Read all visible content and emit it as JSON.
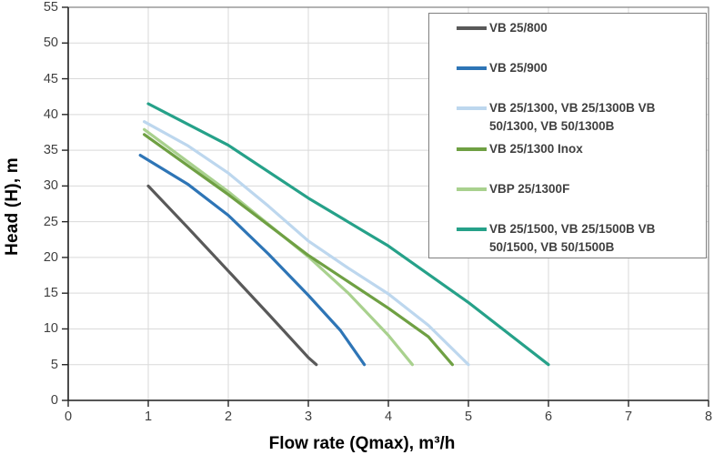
{
  "chart_data": {
    "type": "line",
    "title": "",
    "xlabel": "Flow rate (Qmax), m³/h",
    "ylabel": "Head (H), m",
    "xlim": [
      0,
      8
    ],
    "ylim": [
      0,
      55
    ],
    "x_ticks": [
      0,
      1,
      2,
      3,
      4,
      5,
      6,
      7,
      8
    ],
    "y_ticks": [
      0,
      5,
      10,
      15,
      20,
      25,
      30,
      35,
      40,
      45,
      50,
      55
    ],
    "grid": true,
    "legend_position": "top-right-overlay",
    "series": [
      {
        "name": "VB 25/800",
        "color": "#595959",
        "points": [
          [
            1.0,
            30.0
          ],
          [
            1.5,
            24.1
          ],
          [
            2.0,
            18.1
          ],
          [
            2.5,
            12.1
          ],
          [
            3.0,
            6.0
          ],
          [
            3.1,
            5.0
          ]
        ]
      },
      {
        "name": "VB 25/900",
        "color": "#2E75B6",
        "points": [
          [
            0.9,
            34.3
          ],
          [
            1.5,
            30.2
          ],
          [
            2.0,
            25.9
          ],
          [
            2.5,
            20.5
          ],
          [
            3.0,
            14.7
          ],
          [
            3.4,
            9.8
          ],
          [
            3.7,
            5.0
          ]
        ]
      },
      {
        "name": "VB 25/1300, VB 25/1300B  VB 50/1300, VB 50/1300B",
        "color": "#BDD7EE",
        "points": [
          [
            0.95,
            39.0
          ],
          [
            1.5,
            35.6
          ],
          [
            2.0,
            31.8
          ],
          [
            2.5,
            27.2
          ],
          [
            3.0,
            22.3
          ],
          [
            3.5,
            18.5
          ],
          [
            4.0,
            14.9
          ],
          [
            4.5,
            10.5
          ],
          [
            5.0,
            5.0
          ]
        ]
      },
      {
        "name": "VBP 25/1300F",
        "color": "#A9D18E",
        "points": [
          [
            0.95,
            37.9
          ],
          [
            2.0,
            29.2
          ],
          [
            3.0,
            20.1
          ],
          [
            3.5,
            15.0
          ],
          [
            4.0,
            9.1
          ],
          [
            4.3,
            5.0
          ]
        ]
      },
      {
        "name": "VB 25/1300 Inox",
        "color": "#6FA043",
        "points": [
          [
            0.95,
            37.2
          ],
          [
            2.0,
            28.8
          ],
          [
            3.0,
            20.3
          ],
          [
            4.0,
            12.9
          ],
          [
            4.5,
            8.9
          ],
          [
            4.8,
            5.0
          ]
        ]
      },
      {
        "name": "VB 25/1500, VB 25/1500B VB 50/1500, VB 50/1500B",
        "color": "#26A189",
        "points": [
          [
            1.0,
            41.5
          ],
          [
            2.0,
            35.7
          ],
          [
            3.0,
            28.3
          ],
          [
            4.0,
            21.6
          ],
          [
            5.0,
            13.7
          ],
          [
            6.0,
            5.0
          ]
        ]
      }
    ]
  },
  "legend": {
    "entries": [
      {
        "label_line1": "VB 25/800",
        "label_line2": "",
        "color": "#595959"
      },
      {
        "label_line1": "VB 25/900",
        "label_line2": "",
        "color": "#2E75B6"
      },
      {
        "label_line1": "VB 25/1300, VB 25/1300B  VB",
        "label_line2": "50/1300, VB 50/1300B",
        "color": "#BDD7EE"
      },
      {
        "label_line1": "VB 25/1300 Inox",
        "label_line2": "",
        "color": "#6FA043"
      },
      {
        "label_line1": "VBP 25/1300F",
        "label_line2": "",
        "color": "#A9D18E"
      },
      {
        "label_line1": "VB 25/1500, VB 25/1500B VB",
        "label_line2": "50/1500, VB 50/1500B",
        "color": "#26A189"
      }
    ]
  },
  "colors": {
    "background": "#FFFFFF",
    "gridline": "#D9D9D9",
    "plot_border": "#808080",
    "axis_line": "#262626",
    "tick_label": "#404040",
    "axis_title": "#000000",
    "legend_border": "#7F7F7F",
    "legend_text": "#404040"
  }
}
